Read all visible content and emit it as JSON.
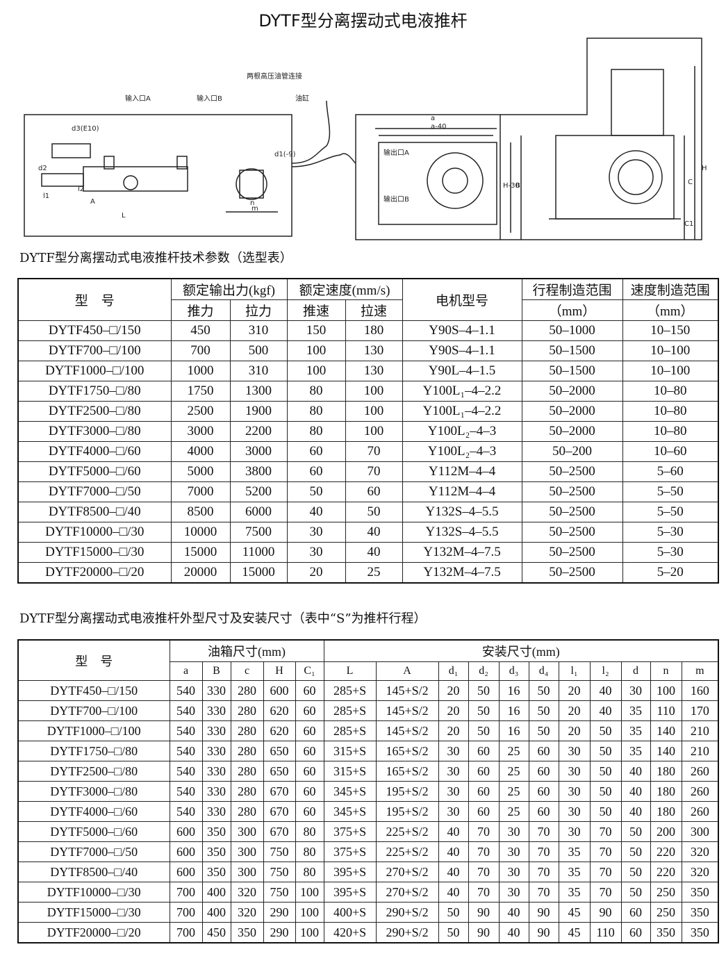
{
  "title": "DYTF型分离摆动式电液推杆",
  "diagram": {
    "labels": [
      "两根高压油管连接",
      "输入口A",
      "输入口B",
      "油缸",
      "d3(E10)",
      "d2",
      "l1",
      "l2",
      "A",
      "L",
      "d1(-9)",
      "n",
      "m",
      "a",
      "a-40",
      "输出口A",
      "输出口B",
      "B",
      "H-30",
      "H",
      "C",
      "C1"
    ]
  },
  "table1": {
    "caption": "DYTF型分离摆动式电液推杆技术参数（选型表）",
    "header_row1": [
      "型　号",
      "额定输出力(kgf)",
      "额定速度(mm/s)",
      "电机型号",
      "行程制造范围",
      "速度制造范围"
    ],
    "header_row2": [
      "推力",
      "拉力",
      "推速",
      "拉速",
      "（mm）",
      "（mm）"
    ],
    "rows": [
      [
        "DYTF450–□/150",
        "450",
        "310",
        "150",
        "180",
        "Y90S–4–1.1",
        "50–1000",
        "10–150"
      ],
      [
        "DYTF700–□/100",
        "700",
        "500",
        "100",
        "130",
        "Y90S–4–1.1",
        "50–1500",
        "10–100"
      ],
      [
        "DYTF1000–□/100",
        "1000",
        "310",
        "100",
        "130",
        "Y90L–4–1.5",
        "50–1500",
        "10–100"
      ],
      [
        "DYTF1750–□/80",
        "1750",
        "1300",
        "80",
        "100",
        "Y100L₁–4–2.2",
        "50–2000",
        "10–80"
      ],
      [
        "DYTF2500–□/80",
        "2500",
        "1900",
        "80",
        "100",
        "Y100L₁–4–2.2",
        "50–2000",
        "10–80"
      ],
      [
        "DYTF3000–□/80",
        "3000",
        "2200",
        "80",
        "100",
        "Y100L₂–4–3",
        "50–2000",
        "10–80"
      ],
      [
        "DYTF4000–□/60",
        "4000",
        "3000",
        "60",
        "70",
        "Y100L₂–4–3",
        "50–200",
        "10–60"
      ],
      [
        "DYTF5000–□/60",
        "5000",
        "3800",
        "60",
        "70",
        "Y112M–4–4",
        "50–2500",
        "5–60"
      ],
      [
        "DYTF7000–□/50",
        "7000",
        "5200",
        "50",
        "60",
        "Y112M–4–4",
        "50–2500",
        "5–50"
      ],
      [
        "DYTF8500–□/40",
        "8500",
        "6000",
        "40",
        "50",
        "Y132S–4–5.5",
        "50–2500",
        "5–50"
      ],
      [
        "DYTF10000–□/30",
        "10000",
        "7500",
        "30",
        "40",
        "Y132S–4–5.5",
        "50–2500",
        "5–30"
      ],
      [
        "DYTF15000–□/30",
        "15000",
        "11000",
        "30",
        "40",
        "Y132M–4–7.5",
        "50–2500",
        "5–30"
      ],
      [
        "DYTF20000–□/20",
        "20000",
        "15000",
        "20",
        "25",
        "Y132M–4–7.5",
        "50–2500",
        "5–20"
      ]
    ]
  },
  "table2": {
    "caption": "DYTF型分离摆动式电液推杆外型尺寸及安装尺寸（表中“S”为推杆行程）",
    "header_row1": [
      "型　号",
      "油箱尺寸(mm)",
      "安装尺寸(mm)"
    ],
    "header_row2": [
      "a",
      "B",
      "c",
      "H",
      "C₁",
      "L",
      "A",
      "d₁",
      "d₂",
      "d₃",
      "d₄",
      "l₁",
      "l₂",
      "d",
      "n",
      "m"
    ],
    "rows": [
      [
        "DYTF450–□/150",
        "540",
        "330",
        "280",
        "600",
        "60",
        "285+S",
        "145+S/2",
        "20",
        "50",
        "16",
        "50",
        "20",
        "40",
        "30",
        "100",
        "160"
      ],
      [
        "DYTF700–□/100",
        "540",
        "330",
        "280",
        "620",
        "60",
        "285+S",
        "145+S/2",
        "20",
        "50",
        "16",
        "50",
        "20",
        "40",
        "35",
        "110",
        "170"
      ],
      [
        "DYTF1000–□/100",
        "540",
        "330",
        "280",
        "620",
        "60",
        "285+S",
        "145+S/2",
        "20",
        "50",
        "16",
        "50",
        "20",
        "50",
        "35",
        "140",
        "210"
      ],
      [
        "DYTF1750–□/80",
        "540",
        "330",
        "280",
        "650",
        "60",
        "315+S",
        "165+S/2",
        "30",
        "60",
        "25",
        "60",
        "30",
        "50",
        "35",
        "140",
        "210"
      ],
      [
        "DYTF2500–□/80",
        "540",
        "330",
        "280",
        "650",
        "60",
        "315+S",
        "165+S/2",
        "30",
        "60",
        "25",
        "60",
        "30",
        "50",
        "40",
        "180",
        "260"
      ],
      [
        "DYTF3000–□/80",
        "540",
        "330",
        "280",
        "670",
        "60",
        "345+S",
        "195+S/2",
        "30",
        "60",
        "25",
        "60",
        "30",
        "50",
        "40",
        "180",
        "260"
      ],
      [
        "DYTF4000–□/60",
        "540",
        "330",
        "280",
        "670",
        "60",
        "345+S",
        "195+S/2",
        "30",
        "60",
        "25",
        "60",
        "30",
        "50",
        "40",
        "180",
        "260"
      ],
      [
        "DYTF5000–□/60",
        "600",
        "350",
        "300",
        "670",
        "80",
        "375+S",
        "225+S/2",
        "40",
        "70",
        "30",
        "70",
        "30",
        "70",
        "50",
        "200",
        "300"
      ],
      [
        "DYTF7000–□/50",
        "600",
        "350",
        "300",
        "750",
        "80",
        "375+S",
        "225+S/2",
        "40",
        "70",
        "30",
        "70",
        "35",
        "70",
        "50",
        "220",
        "320"
      ],
      [
        "DYTF8500–□/40",
        "600",
        "350",
        "300",
        "750",
        "80",
        "395+S",
        "270+S/2",
        "40",
        "70",
        "30",
        "70",
        "35",
        "70",
        "50",
        "220",
        "320"
      ],
      [
        "DYTF10000–□/30",
        "700",
        "400",
        "320",
        "750",
        "100",
        "395+S",
        "270+S/2",
        "40",
        "70",
        "30",
        "70",
        "35",
        "70",
        "50",
        "250",
        "350"
      ],
      [
        "DYTF15000–□/30",
        "700",
        "400",
        "320",
        "290",
        "100",
        "400+S",
        "290+S/2",
        "50",
        "90",
        "40",
        "90",
        "45",
        "90",
        "60",
        "250",
        "350"
      ],
      [
        "DYTF20000–□/20",
        "700",
        "450",
        "350",
        "290",
        "100",
        "420+S",
        "290+S/2",
        "50",
        "90",
        "40",
        "90",
        "45",
        "110",
        "60",
        "350",
        "350"
      ]
    ]
  }
}
